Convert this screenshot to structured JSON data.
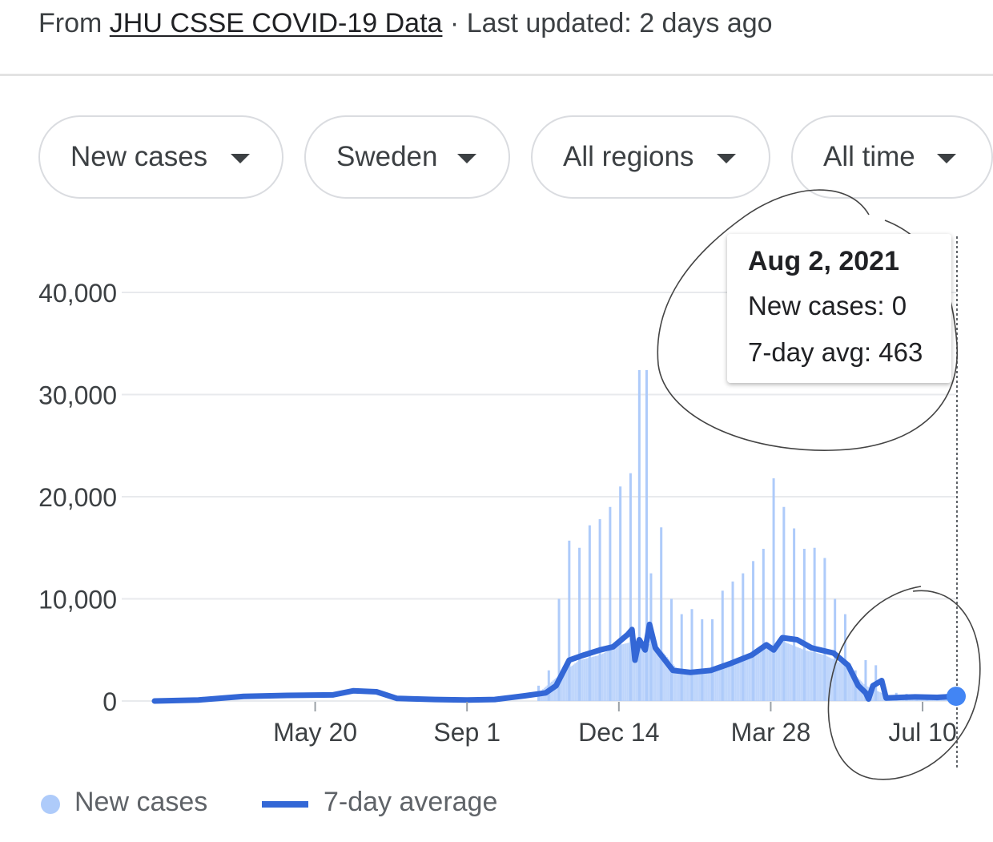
{
  "header": {
    "prefix": "From",
    "source_link": "JHU CSSE COVID-19 Data",
    "separator": "·",
    "updated": "Last updated: 2 days ago"
  },
  "filters": [
    {
      "label": "New cases"
    },
    {
      "label": "Sweden"
    },
    {
      "label": "All regions"
    },
    {
      "label": "All time"
    }
  ],
  "tooltip": {
    "date": "Aug 2, 2021",
    "new_cases": "New cases: 0",
    "avg": "7-day avg: 463"
  },
  "legend": {
    "bars_label": "New cases",
    "line_label": "7-day average"
  },
  "colors": {
    "bar": "#aecbfa",
    "line": "#3367d6",
    "grid": "#e8eaed",
    "axis_text": "#3c4043"
  },
  "chart_data": {
    "type": "bar",
    "title": "",
    "xlabel": "",
    "ylabel": "",
    "ylim": [
      0,
      40000
    ],
    "yticks": [
      {
        "value": 40000,
        "label": "40,000"
      },
      {
        "value": 30000,
        "label": "30,000"
      },
      {
        "value": 20000,
        "label": "20,000"
      },
      {
        "value": 10000,
        "label": "10,000"
      },
      {
        "value": 0,
        "label": "0"
      }
    ],
    "xticks": [
      {
        "date": "2020-05-20",
        "label": "May 20"
      },
      {
        "date": "2020-09-01",
        "label": "Sep 1"
      },
      {
        "date": "2020-12-14",
        "label": "Dec 14"
      },
      {
        "date": "2021-03-28",
        "label": "Mar 28"
      },
      {
        "date": "2021-07-10",
        "label": "Jul 10"
      }
    ],
    "xlim": [
      "2020-01-31",
      "2021-08-02"
    ],
    "series": [
      {
        "name": "New cases",
        "type": "bar",
        "points": [
          [
            "2020-10-20",
            1500
          ],
          [
            "2020-10-27",
            3000
          ],
          [
            "2020-11-03",
            10000
          ],
          [
            "2020-11-10",
            15700
          ],
          [
            "2020-11-17",
            15000
          ],
          [
            "2020-11-24",
            17200
          ],
          [
            "2020-12-01",
            17800
          ],
          [
            "2020-12-08",
            19000
          ],
          [
            "2020-12-15",
            21000
          ],
          [
            "2020-12-22",
            22300
          ],
          [
            "2020-12-28",
            32400
          ],
          [
            "2021-01-02",
            32400
          ],
          [
            "2021-01-05",
            12500
          ],
          [
            "2021-01-12",
            17000
          ],
          [
            "2021-01-19",
            10000
          ],
          [
            "2021-01-26",
            8500
          ],
          [
            "2021-02-02",
            9000
          ],
          [
            "2021-02-09",
            8000
          ],
          [
            "2021-02-16",
            8000
          ],
          [
            "2021-02-23",
            10800
          ],
          [
            "2021-03-02",
            11700
          ],
          [
            "2021-03-09",
            12500
          ],
          [
            "2021-03-16",
            13700
          ],
          [
            "2021-03-23",
            14900
          ],
          [
            "2021-03-30",
            21800
          ],
          [
            "2021-04-06",
            19000
          ],
          [
            "2021-04-13",
            16900
          ],
          [
            "2021-04-20",
            14900
          ],
          [
            "2021-04-27",
            15000
          ],
          [
            "2021-05-04",
            14000
          ],
          [
            "2021-05-11",
            10000
          ],
          [
            "2021-05-18",
            8500
          ],
          [
            "2021-05-25",
            3000
          ],
          [
            "2021-06-01",
            4000
          ],
          [
            "2021-06-08",
            3500
          ],
          [
            "2021-06-15",
            1000
          ],
          [
            "2021-06-22",
            800
          ],
          [
            "2021-06-29",
            700
          ],
          [
            "2021-07-06",
            600
          ],
          [
            "2021-07-13",
            500
          ],
          [
            "2021-07-20",
            600
          ],
          [
            "2021-07-27",
            700
          ],
          [
            "2021-08-02",
            0
          ]
        ],
        "daily_background": [
          [
            "2020-10-20",
            800
          ],
          [
            "2020-11-03",
            2500
          ],
          [
            "2020-11-17",
            4000
          ],
          [
            "2020-12-01",
            4500
          ],
          [
            "2020-12-15",
            5500
          ],
          [
            "2020-12-29",
            6000
          ],
          [
            "2021-01-12",
            5000
          ],
          [
            "2021-01-26",
            2600
          ],
          [
            "2021-02-09",
            2800
          ],
          [
            "2021-02-23",
            3600
          ],
          [
            "2021-03-09",
            4200
          ],
          [
            "2021-03-23",
            5300
          ],
          [
            "2021-04-06",
            5800
          ],
          [
            "2021-04-20",
            5000
          ],
          [
            "2021-05-04",
            4500
          ],
          [
            "2021-05-18",
            3500
          ],
          [
            "2021-06-01",
            1500
          ],
          [
            "2021-06-15",
            600
          ],
          [
            "2021-07-01",
            400
          ],
          [
            "2021-07-20",
            300
          ],
          [
            "2021-08-02",
            250
          ]
        ]
      },
      {
        "name": "7-day average",
        "type": "line",
        "points": [
          [
            "2020-01-31",
            0
          ],
          [
            "2020-03-01",
            100
          ],
          [
            "2020-04-01",
            450
          ],
          [
            "2020-05-01",
            550
          ],
          [
            "2020-06-01",
            600
          ],
          [
            "2020-06-15",
            1000
          ],
          [
            "2020-07-01",
            900
          ],
          [
            "2020-07-15",
            250
          ],
          [
            "2020-08-10",
            150
          ],
          [
            "2020-09-01",
            100
          ],
          [
            "2020-09-20",
            150
          ],
          [
            "2020-10-10",
            500
          ],
          [
            "2020-10-25",
            800
          ],
          [
            "2020-11-01",
            1500
          ],
          [
            "2020-11-10",
            4000
          ],
          [
            "2020-11-20",
            4500
          ],
          [
            "2020-12-01",
            5000
          ],
          [
            "2020-12-10",
            5300
          ],
          [
            "2020-12-20",
            6500
          ],
          [
            "2020-12-23",
            7000
          ],
          [
            "2020-12-25",
            4000
          ],
          [
            "2020-12-28",
            6000
          ],
          [
            "2021-01-01",
            5000
          ],
          [
            "2021-01-04",
            7500
          ],
          [
            "2021-01-08",
            5200
          ],
          [
            "2021-01-20",
            3000
          ],
          [
            "2021-02-01",
            2800
          ],
          [
            "2021-02-15",
            3000
          ],
          [
            "2021-03-01",
            3700
          ],
          [
            "2021-03-15",
            4500
          ],
          [
            "2021-03-25",
            5500
          ],
          [
            "2021-03-30",
            5000
          ],
          [
            "2021-04-05",
            6200
          ],
          [
            "2021-04-15",
            6000
          ],
          [
            "2021-04-25",
            5200
          ],
          [
            "2021-05-10",
            4700
          ],
          [
            "2021-05-20",
            3500
          ],
          [
            "2021-05-27",
            1500
          ],
          [
            "2021-06-01",
            800
          ],
          [
            "2021-06-03",
            200
          ],
          [
            "2021-06-06",
            1500
          ],
          [
            "2021-06-12",
            2000
          ],
          [
            "2021-06-15",
            300
          ],
          [
            "2021-06-25",
            350
          ],
          [
            "2021-07-05",
            400
          ],
          [
            "2021-07-20",
            350
          ],
          [
            "2021-08-02",
            463
          ]
        ]
      }
    ],
    "highlight": {
      "date": "2021-08-02",
      "value": 463
    },
    "grid": true,
    "legend_position": "bottom-left"
  }
}
